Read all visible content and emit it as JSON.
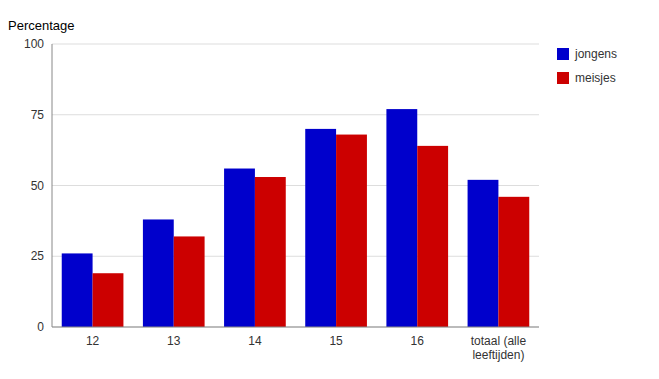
{
  "chart_data": {
    "type": "bar",
    "y_label": "Percentage",
    "categories": [
      "12",
      "13",
      "14",
      "15",
      "16",
      "totaal (alle\nleeftijden)"
    ],
    "series": [
      {
        "name": "jongens",
        "color": "#0000CC",
        "values": [
          26,
          38,
          56,
          70,
          77,
          52
        ]
      },
      {
        "name": "meisjes",
        "color": "#CC0000",
        "values": [
          19,
          32,
          53,
          68,
          64,
          46
        ]
      }
    ],
    "ylim": [
      0,
      100
    ],
    "yticks": [
      0,
      25,
      50,
      75,
      100
    ],
    "grid": true,
    "legend": "right"
  }
}
